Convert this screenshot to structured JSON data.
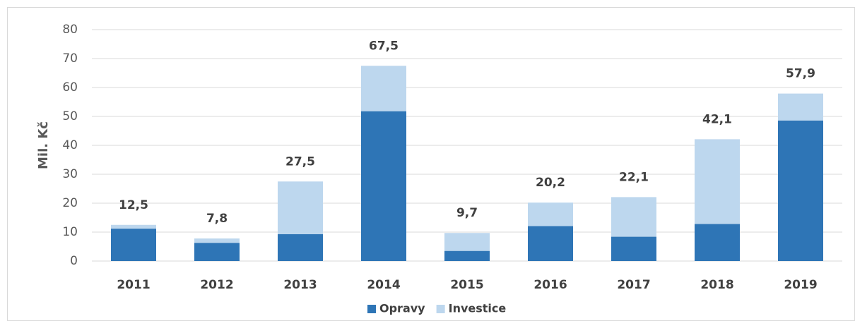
{
  "chart_data": {
    "type": "stacked_bar",
    "y_label": "Mil. Kč",
    "categories": [
      "2011",
      "2012",
      "2013",
      "2014",
      "2015",
      "2016",
      "2017",
      "2018",
      "2019"
    ],
    "series": [
      {
        "name": "Opravy",
        "color": "#2e75b6",
        "values": [
          11.2,
          6.3,
          9.3,
          51.8,
          3.5,
          12.1,
          8.4,
          12.8,
          48.6
        ]
      },
      {
        "name": "Investice",
        "color": "#bdd7ee",
        "values": [
          1.3,
          1.5,
          18.2,
          15.7,
          6.2,
          8.1,
          13.7,
          29.3,
          9.3
        ]
      }
    ],
    "totals": [
      12.5,
      7.8,
      27.5,
      67.5,
      9.7,
      20.2,
      22.1,
      42.1,
      57.9
    ],
    "total_labels": [
      "12,5",
      "7,8",
      "27,5",
      "67,5",
      "9,7",
      "20,2",
      "22,1",
      "42,1",
      "57,9"
    ],
    "ylim": [
      0,
      80
    ],
    "yticks": [
      0,
      10,
      20,
      30,
      40,
      50,
      60,
      70,
      80
    ],
    "grid": true,
    "legend": "bottom"
  }
}
